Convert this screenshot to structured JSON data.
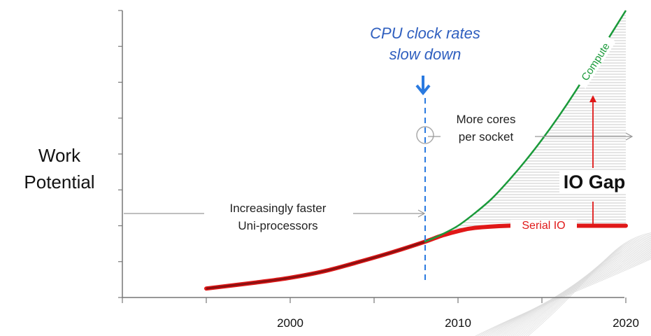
{
  "chart_data": {
    "type": "line",
    "ylabel": "Work Potential",
    "xlabel": "",
    "xlim": [
      1990,
      2020
    ],
    "ylim": [
      0,
      8
    ],
    "x_tick_labels": [
      "2000",
      "2010",
      "2020"
    ],
    "x_ticks": [
      1990,
      1995,
      2000,
      2005,
      2010,
      2015,
      2020
    ],
    "y_ticks": [
      0,
      1,
      2,
      3,
      4,
      5,
      6,
      7,
      8
    ],
    "series": [
      {
        "name": "Serial IO",
        "color": "#ff2020",
        "x": [
          1995,
          1998,
          2000,
          2002,
          2004,
          2006,
          2008,
          2009,
          2010,
          2011,
          2013,
          2015,
          2020
        ],
        "y": [
          0.25,
          0.42,
          0.55,
          0.73,
          0.98,
          1.25,
          1.55,
          1.72,
          1.85,
          1.94,
          2.0,
          2.0,
          2.0
        ]
      },
      {
        "name": "Compute",
        "color": "#1a9a3a",
        "x": [
          2008,
          2009,
          2010,
          2011,
          2012,
          2013,
          2014,
          2015,
          2016,
          2017,
          2018,
          2019,
          2020
        ],
        "y": [
          1.55,
          1.75,
          2.0,
          2.35,
          2.75,
          3.25,
          3.8,
          4.4,
          5.05,
          5.75,
          6.5,
          7.25,
          8.0
        ]
      }
    ],
    "annotations": {
      "cpu_event": "CPU clock rates",
      "cpu_event2": "slow down",
      "cpu_event_year": 2008,
      "more_cores": "More cores",
      "more_cores2": "per socket",
      "uni_1": "Increasingly faster",
      "uni_2": "Uni-processors",
      "io_gap": "IO Gap",
      "serial_io": "Serial IO",
      "compute": "Compute"
    },
    "ylabel_lines": [
      "Work",
      "Potential"
    ],
    "grid": false
  }
}
